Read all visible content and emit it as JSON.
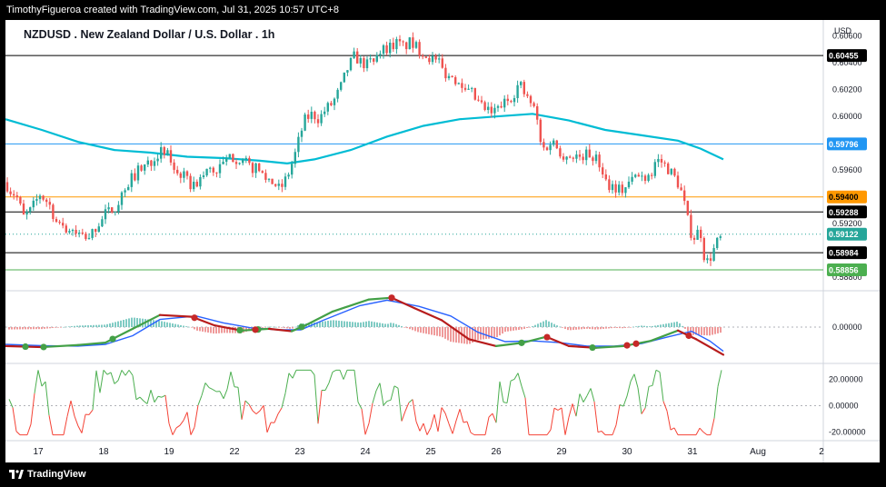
{
  "header": {
    "caption": "TimothyFigueroa created with TradingView.com, Jul 31, 2025 10:57 UTC+8"
  },
  "footer": {
    "brand": "TradingView"
  },
  "chart_data": [
    {
      "type": "candlestick",
      "title": "NZDUSD . New Zealand Dollar / U.S. Dollar . 1h",
      "currency_label": "USD",
      "ylim": [
        0.587,
        0.6072
      ],
      "y_ticks": [
        "0.60600",
        "0.60400",
        "0.60200",
        "0.60000",
        "0.59800",
        "0.59600",
        "0.59400",
        "0.59200",
        "0.59000",
        "0.58800"
      ],
      "x_ticks": [
        "17",
        "18",
        "19",
        "22",
        "23",
        "24",
        "25",
        "26",
        "29",
        "30",
        "31",
        "Aug",
        "2"
      ],
      "price_path": [
        [
          0,
          0.5951
        ],
        [
          5,
          0.5945
        ],
        [
          12,
          0.5941
        ],
        [
          20,
          0.5925
        ],
        [
          28,
          0.593
        ],
        [
          38,
          0.5942
        ],
        [
          48,
          0.5935
        ],
        [
          58,
          0.5918
        ],
        [
          70,
          0.5916
        ],
        [
          80,
          0.5912
        ],
        [
          90,
          0.5907
        ],
        [
          100,
          0.5918
        ],
        [
          110,
          0.5927
        ],
        [
          120,
          0.5932
        ],
        [
          125,
          0.5937
        ],
        [
          132,
          0.5948
        ],
        [
          140,
          0.5955
        ],
        [
          150,
          0.5962
        ],
        [
          160,
          0.5967
        ],
        [
          168,
          0.5973
        ],
        [
          178,
          0.5972
        ],
        [
          186,
          0.5961
        ],
        [
          196,
          0.5955
        ],
        [
          205,
          0.5948
        ],
        [
          210,
          0.595
        ],
        [
          218,
          0.5956
        ],
        [
          226,
          0.5962
        ],
        [
          232,
          0.5958
        ],
        [
          240,
          0.5965
        ],
        [
          250,
          0.597
        ],
        [
          258,
          0.5968
        ],
        [
          268,
          0.5963
        ],
        [
          278,
          0.596
        ],
        [
          286,
          0.5955
        ],
        [
          296,
          0.595
        ],
        [
          302,
          0.5945
        ],
        [
          310,
          0.5955
        ],
        [
          318,
          0.597
        ],
        [
          325,
          0.5988
        ],
        [
          330,
          0.5998
        ],
        [
          338,
          0.6002
        ],
        [
          345,
          0.5998
        ],
        [
          352,
          0.6005
        ],
        [
          360,
          0.601
        ],
        [
          368,
          0.602
        ],
        [
          376,
          0.6035
        ],
        [
          384,
          0.6045
        ],
        [
          392,
          0.604
        ],
        [
          400,
          0.6038
        ],
        [
          408,
          0.6048
        ],
        [
          415,
          0.605
        ],
        [
          422,
          0.6052
        ],
        [
          430,
          0.6055
        ],
        [
          438,
          0.6052
        ],
        [
          445,
          0.6055
        ],
        [
          455,
          0.605
        ],
        [
          465,
          0.6045
        ],
        [
          475,
          0.604
        ],
        [
          485,
          0.6032
        ],
        [
          495,
          0.6028
        ],
        [
          505,
          0.6025
        ],
        [
          512,
          0.6018
        ],
        [
          520,
          0.601
        ],
        [
          528,
          0.6005
        ],
        [
          536,
          0.6002
        ],
        [
          545,
          0.6008
        ],
        [
          553,
          0.6012
        ],
        [
          560,
          0.6018
        ],
        [
          566,
          0.6025
        ],
        [
          572,
          0.6015
        ],
        [
          578,
          0.601
        ],
        [
          584,
          0.6002
        ],
        [
          590,
          0.5975
        ],
        [
          596,
          0.5978
        ],
        [
          602,
          0.5982
        ],
        [
          608,
          0.5976
        ],
        [
          616,
          0.597
        ],
        [
          624,
          0.5972
        ],
        [
          632,
          0.597
        ],
        [
          640,
          0.5972
        ],
        [
          648,
          0.597
        ],
        [
          656,
          0.5962
        ],
        [
          662,
          0.595
        ],
        [
          670,
          0.5948
        ],
        [
          678,
          0.5945
        ],
        [
          686,
          0.595
        ],
        [
          694,
          0.5956
        ],
        [
          702,
          0.5955
        ],
        [
          710,
          0.5958
        ],
        [
          716,
          0.5968
        ],
        [
          722,
          0.5966
        ],
        [
          728,
          0.5962
        ],
        [
          735,
          0.5956
        ],
        [
          742,
          0.5948
        ],
        [
          748,
          0.5932
        ],
        [
          753,
          0.5915
        ],
        [
          758,
          0.591
        ],
        [
          763,
          0.5915
        ],
        [
          766,
          0.5912
        ],
        [
          770,
          0.589
        ],
        [
          774,
          0.5893
        ],
        [
          778,
          0.5898
        ],
        [
          782,
          0.5905
        ],
        [
          786,
          0.5908
        ],
        [
          790,
          0.5912
        ]
      ],
      "moving_average": [
        [
          0,
          0.5998
        ],
        [
          40,
          0.599
        ],
        [
          80,
          0.5981
        ],
        [
          120,
          0.5975
        ],
        [
          160,
          0.5973
        ],
        [
          200,
          0.597
        ],
        [
          240,
          0.5969
        ],
        [
          280,
          0.5967
        ],
        [
          310,
          0.5965
        ],
        [
          340,
          0.5968
        ],
        [
          380,
          0.5975
        ],
        [
          420,
          0.5985
        ],
        [
          460,
          0.5993
        ],
        [
          500,
          0.5998
        ],
        [
          540,
          0.6
        ],
        [
          580,
          0.6002
        ],
        [
          620,
          0.5997
        ],
        [
          660,
          0.599
        ],
        [
          700,
          0.5986
        ],
        [
          740,
          0.5982
        ],
        [
          765,
          0.5976
        ],
        [
          790,
          0.5968
        ]
      ],
      "horizontal_levels": [
        {
          "price": 0.60455,
          "label": "0.60455",
          "color": "#000000",
          "text_color": "#ffffff"
        },
        {
          "price": 0.59796,
          "label": "0.59796",
          "color": "#2196f3",
          "text_color": "#ffffff"
        },
        {
          "price": 0.594,
          "label": "0.59400",
          "color": "#ff9800",
          "text_color": "#000000"
        },
        {
          "price": 0.59288,
          "label": "0.59288",
          "color": "#000000",
          "text_color": "#ffffff"
        },
        {
          "price": 0.59122,
          "label": "0.59122",
          "color": "#26a69a",
          "text_color": "#ffffff",
          "dotted": true
        },
        {
          "price": 0.58984,
          "label": "0.58984",
          "color": "#000000",
          "text_color": "#ffffff"
        },
        {
          "price": 0.58856,
          "label": "0.58856",
          "color": "#4caf50",
          "text_color": "#ffffff"
        }
      ],
      "colors": {
        "up": "#26a69a",
        "down": "#ef5350",
        "ma": "#00bcd4"
      }
    },
    {
      "type": "macd",
      "ylim": [
        -1,
        1
      ],
      "y_ticks": [
        "0.00000"
      ],
      "macd_line": [
        [
          0,
          -0.55
        ],
        [
          40,
          -0.58
        ],
        [
          80,
          -0.52
        ],
        [
          110,
          -0.45
        ],
        [
          140,
          -0.05
        ],
        [
          170,
          0.35
        ],
        [
          205,
          0.3
        ],
        [
          230,
          0.05
        ],
        [
          260,
          -0.1
        ],
        [
          290,
          -0.05
        ],
        [
          315,
          -0.12
        ],
        [
          330,
          0.05
        ],
        [
          360,
          0.45
        ],
        [
          400,
          0.8
        ],
        [
          425,
          0.85
        ],
        [
          450,
          0.55
        ],
        [
          480,
          0.2
        ],
        [
          510,
          -0.35
        ],
        [
          540,
          -0.55
        ],
        [
          570,
          -0.45
        ],
        [
          595,
          -0.28
        ],
        [
          620,
          -0.55
        ],
        [
          650,
          -0.6
        ],
        [
          680,
          -0.55
        ],
        [
          710,
          -0.4
        ],
        [
          740,
          -0.1
        ],
        [
          760,
          -0.35
        ],
        [
          790,
          -0.8
        ]
      ],
      "signal_line": [
        [
          0,
          -0.5
        ],
        [
          40,
          -0.54
        ],
        [
          80,
          -0.55
        ],
        [
          110,
          -0.5
        ],
        [
          140,
          -0.25
        ],
        [
          170,
          0.22
        ],
        [
          210,
          0.32
        ],
        [
          240,
          0.12
        ],
        [
          270,
          -0.02
        ],
        [
          300,
          -0.08
        ],
        [
          325,
          -0.08
        ],
        [
          350,
          0.2
        ],
        [
          390,
          0.62
        ],
        [
          420,
          0.78
        ],
        [
          455,
          0.6
        ],
        [
          490,
          0.32
        ],
        [
          520,
          -0.15
        ],
        [
          550,
          -0.42
        ],
        [
          580,
          -0.4
        ],
        [
          610,
          -0.45
        ],
        [
          640,
          -0.55
        ],
        [
          670,
          -0.55
        ],
        [
          700,
          -0.48
        ],
        [
          730,
          -0.28
        ],
        [
          755,
          -0.12
        ],
        [
          775,
          -0.4
        ],
        [
          790,
          -0.7
        ]
      ],
      "cross_points_green": [
        22,
        42,
        118,
        258,
        278,
        326,
        568,
        646
      ],
      "cross_points_red": [
        208,
        275,
        425,
        596,
        684,
        694,
        752
      ]
    },
    {
      "type": "oscillator",
      "ylim": [
        -25,
        30
      ],
      "y_ticks": [
        "20.00000",
        "0.00000",
        "-20.00000"
      ]
    }
  ]
}
